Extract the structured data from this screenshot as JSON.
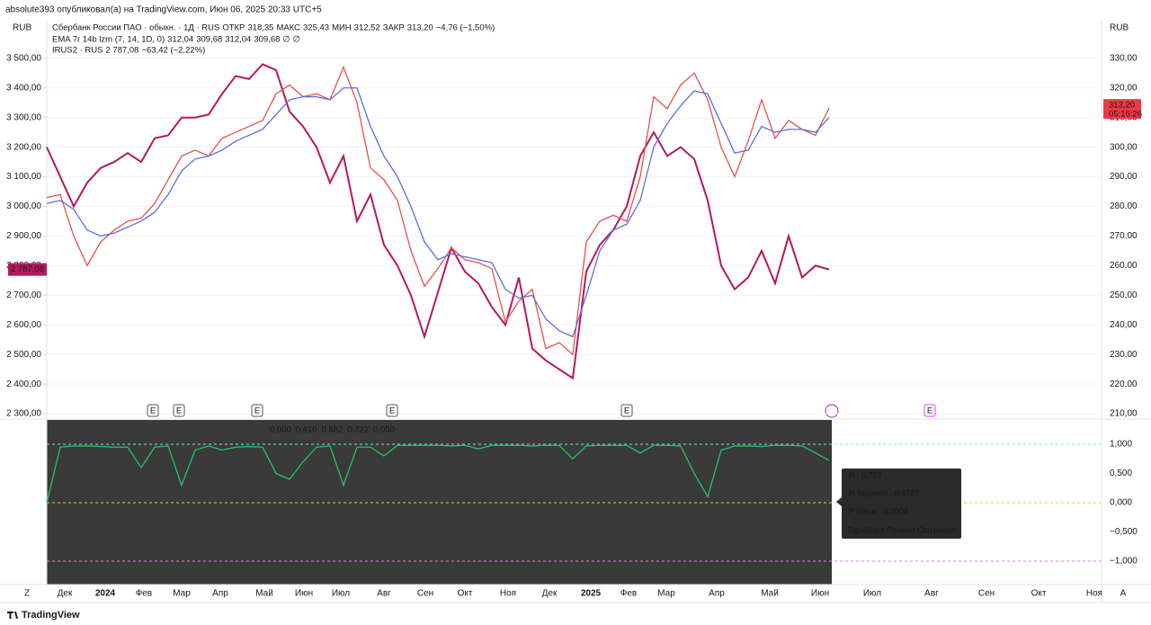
{
  "header": "absolute393 опубликовал(а) на TradingView.com, Июн 06, 2025 20:33 UTC+5",
  "legend": {
    "symbol": "Сбербанк России ПАО · обыкн. · 1Д · RUS",
    "open_label": "ОТКР",
    "open": "318,35",
    "high_label": "МАКС",
    "high": "325,43",
    "low_label": "МИН",
    "low": "312,52",
    "close_label": "ЗАКР",
    "close": "313,20",
    "change": "−4,76 (−1,50%)",
    "ema": "EMA 7r 14b lzm (7, 14, 1D, 0)",
    "ema_values": [
      "312,04",
      "309,68",
      "312,04",
      "309,68",
      "∅",
      "∅"
    ],
    "compare": "IRUS2 · RUS",
    "compare_value": "2 787,08",
    "compare_change": "−63,42 (−2,22%)"
  },
  "price_tag": {
    "value": "313,20",
    "countdown": "05:16:26"
  },
  "compare_tag": "2 787,08",
  "currency_left": "RUB",
  "currency_right": "RUB",
  "earnings": [
    "E",
    "E",
    "E",
    "E",
    "E",
    "E"
  ],
  "time_axis": [
    "Дек",
    "2024",
    "Фев",
    "Мар",
    "Апр",
    "Май",
    "Июн",
    "Июл",
    "Авг",
    "Сен",
    "Окт",
    "Ноя",
    "Дек",
    "2025",
    "Фев",
    "Мар",
    "Апр",
    "Май",
    "Июн",
    "Июл",
    "Авг",
    "Сен",
    "Окт",
    "Ноя"
  ],
  "axis_buttons": [
    "Z",
    "A"
  ],
  "footer": "TradingView",
  "tooltip": [
    "R : 0.722",
    "R Squared : 0.4727",
    "P Value : 0.0004",
    "Significant Positive Correlation"
  ],
  "indicator_legend": [
    "0,000",
    "0,410",
    "0,882",
    "0,722",
    "0,050"
  ],
  "chart_data": [
    {
      "type": "line",
      "ylim": [
        2285,
        3630
      ],
      "yticks": [
        {
          "value": 2300,
          "label": "2 300,00"
        },
        {
          "value": 2400,
          "label": "2 400,00"
        },
        {
          "value": 2500,
          "label": "2 500,00"
        },
        {
          "value": 2600,
          "label": "2 600,00"
        },
        {
          "value": 2700,
          "label": "2 700,00"
        },
        {
          "value": 2800,
          "label": "2 800,00"
        },
        {
          "value": 2900,
          "label": "2 900,00"
        },
        {
          "value": 3000,
          "label": "3 000,00"
        },
        {
          "value": 3100,
          "label": "3 100,00"
        },
        {
          "value": 3200,
          "label": "3 200,00"
        },
        {
          "value": 3300,
          "label": "3 300,00"
        },
        {
          "value": 3400,
          "label": "3 400,00"
        },
        {
          "value": 3500,
          "label": "3 500,00"
        }
      ],
      "y2lim": [
        208.5,
        343
      ],
      "y2ticks": [
        {
          "value": 210,
          "label": "210,00"
        },
        {
          "value": 220,
          "label": "220,00"
        },
        {
          "value": 230,
          "label": "230,00"
        },
        {
          "value": 240,
          "label": "240,00"
        },
        {
          "value": 250,
          "label": "250,00"
        },
        {
          "value": 260,
          "label": "260,00"
        },
        {
          "value": 270,
          "label": "270,00"
        },
        {
          "value": 280,
          "label": "280,00"
        },
        {
          "value": 290,
          "label": "290,00"
        },
        {
          "value": 300,
          "label": "300,00"
        },
        {
          "value": 310,
          "label": "310,00"
        },
        {
          "value": 320,
          "label": "320,00"
        },
        {
          "value": 330,
          "label": "330,00"
        }
      ],
      "grid": true,
      "series": [
        {
          "name": "IRUS2",
          "color": "#b5185d",
          "axis": "y",
          "values": [
            3200,
            3100,
            3000,
            3080,
            3130,
            3150,
            3180,
            3150,
            3230,
            3240,
            3300,
            3300,
            3310,
            3380,
            3440,
            3430,
            3480,
            3460,
            3320,
            3270,
            3200,
            3080,
            3170,
            2950,
            3040,
            2870,
            2800,
            2700,
            2560,
            2710,
            2860,
            2780,
            2740,
            2660,
            2600,
            2760,
            2520,
            2480,
            2450,
            2420,
            2780,
            2870,
            2920,
            3000,
            3170,
            3250,
            3170,
            3200,
            3160,
            3020,
            2800,
            2720,
            2760,
            2850,
            2740,
            2900,
            2760,
            2800,
            2787.08
          ]
        },
        {
          "name": "Сбербанк",
          "color": "#e8514a",
          "axis": "y2",
          "values": [
            283,
            284,
            270,
            260,
            268,
            272,
            275,
            276,
            281,
            289,
            297,
            299,
            297,
            303,
            305,
            307,
            309,
            318,
            321,
            317,
            318,
            316,
            327,
            315,
            293,
            289,
            282,
            265,
            253,
            259,
            266,
            262,
            261,
            259,
            241,
            248,
            252,
            232,
            234,
            230,
            268,
            275,
            277,
            275,
            290,
            317,
            313,
            321,
            325,
            316,
            300,
            290,
            302,
            316,
            303,
            309,
            306,
            304,
            313.2
          ]
        },
        {
          "name": "EMA",
          "color": "#5b6ee1",
          "axis": "y2",
          "values": [
            281,
            282,
            279,
            272,
            270,
            271,
            273,
            275,
            278,
            284,
            292,
            296,
            297,
            299,
            302,
            304,
            306,
            311,
            316,
            317,
            317,
            316,
            320,
            320,
            307,
            297,
            290,
            280,
            268,
            262,
            264,
            263,
            262,
            261,
            252,
            249,
            250,
            242,
            238,
            236,
            250,
            265,
            272,
            274,
            282,
            300,
            308,
            314,
            319,
            318,
            308,
            298,
            299,
            307,
            305,
            306,
            306,
            305,
            310
          ]
        }
      ]
    },
    {
      "type": "line",
      "ylim": [
        -1.4,
        1.415
      ],
      "yticks": [
        {
          "value": 1,
          "label": "1,000"
        },
        {
          "value": 0.5,
          "label": "0,500"
        },
        {
          "value": 0,
          "label": "0,000"
        },
        {
          "value": -0.5,
          "label": "−0,500"
        },
        {
          "value": -1,
          "label": "−1,000"
        }
      ],
      "series": [
        {
          "name": "R",
          "color": "#22c55e",
          "values": [
            0.0,
            0.95,
            0.97,
            0.97,
            0.96,
            0.95,
            0.95,
            0.6,
            0.95,
            0.97,
            0.3,
            0.9,
            0.97,
            0.9,
            0.95,
            0.96,
            0.95,
            0.5,
            0.4,
            0.7,
            0.95,
            0.97,
            0.3,
            0.95,
            0.95,
            0.8,
            0.98,
            0.98,
            0.98,
            0.98,
            0.97,
            0.98,
            0.92,
            0.98,
            0.98,
            0.98,
            0.97,
            0.98,
            0.98,
            0.75,
            0.97,
            0.98,
            0.98,
            0.98,
            0.85,
            0.98,
            0.98,
            0.97,
            0.5,
            0.1,
            0.9,
            0.97,
            0.97,
            0.96,
            0.98,
            0.98,
            0.97,
            0.85,
            0.722
          ]
        }
      ]
    }
  ]
}
